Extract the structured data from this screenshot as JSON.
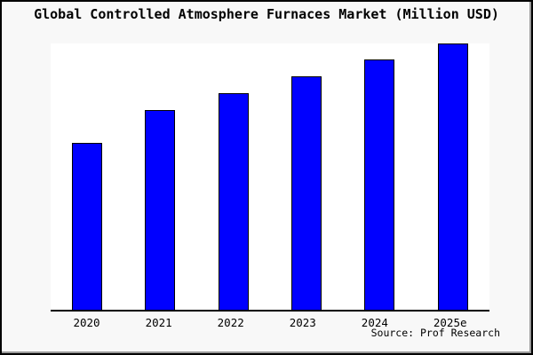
{
  "title": "Global Controlled Atmosphere Furnaces Market (Million USD)",
  "source_note": "Source: Prof Research",
  "colors": {
    "background": "#f8f8f8",
    "plot_background": "#ffffff",
    "bar_fill": "#0000ff",
    "bar_border": "#000000",
    "axis": "#000000",
    "frame_border": "#000000",
    "frame_shadow": "#999999"
  },
  "chart_data": {
    "type": "bar",
    "title": "Global Controlled Atmosphere Furnaces Market (Million USD)",
    "categories": [
      "2020",
      "2021",
      "2022",
      "2023",
      "2024",
      "2025e"
    ],
    "values": [
      62.6,
      75.1,
      81.4,
      87.5,
      93.9,
      100
    ],
    "value_note": "No y-axis scale is shown in the image; values are relative bar heights indexed to 2025e = 100.",
    "xlabel": "",
    "ylabel": "",
    "ylim": [
      0,
      100
    ],
    "grid": false,
    "legend": false,
    "y_axis_ticks_visible": false,
    "source_note": "Source: Prof Research"
  }
}
